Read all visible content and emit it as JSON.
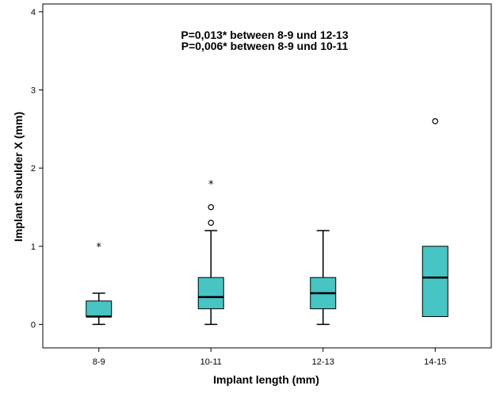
{
  "chart_data": {
    "type": "boxplot",
    "title": "",
    "xlabel": "Implant length (mm)",
    "ylabel": "Implant shoulder X (mm)",
    "ylim": [
      -0.3,
      4.1
    ],
    "yticks": [
      0,
      1,
      2,
      3,
      4
    ],
    "grid": false,
    "box_color": "#47c4c4",
    "categories": [
      "8-9",
      "10-11",
      "12-13",
      "14-15"
    ],
    "boxes": [
      {
        "category": "8-9",
        "whisker_low": 0.0,
        "q1": 0.1,
        "median": 0.1,
        "q3": 0.3,
        "whisker_high": 0.4,
        "outliers": [],
        "extremes": [
          1.0
        ]
      },
      {
        "category": "10-11",
        "whisker_low": 0.0,
        "q1": 0.2,
        "median": 0.35,
        "q3": 0.6,
        "whisker_high": 1.2,
        "outliers": [
          1.3,
          1.5
        ],
        "extremes": [
          1.8
        ]
      },
      {
        "category": "12-13",
        "whisker_low": 0.0,
        "q1": 0.2,
        "median": 0.4,
        "q3": 0.6,
        "whisker_high": 1.2,
        "outliers": [],
        "extremes": []
      },
      {
        "category": "14-15",
        "whisker_low": 0.1,
        "q1": 0.1,
        "median": 0.6,
        "q3": 1.0,
        "whisker_high": 1.0,
        "outliers": [
          2.6
        ],
        "extremes": []
      }
    ],
    "annotations": [
      "P=0,013* between 8-9 und 12-13",
      "P=0,006* between 8-9 und 10-11"
    ]
  }
}
